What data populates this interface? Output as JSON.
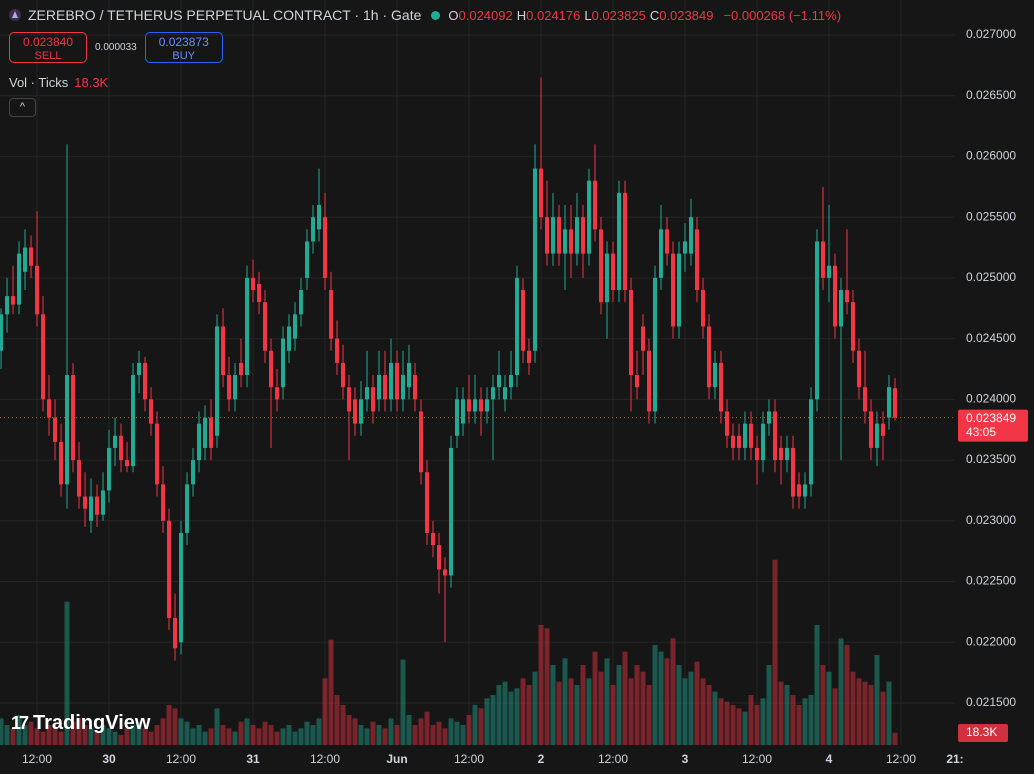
{
  "header": {
    "title": "ZEREBRO / TETHERUS PERPETUAL CONTRACT · 1h · Gate",
    "ohlc_legend": [
      {
        "key": "O",
        "value": "0.024092"
      },
      {
        "key": "H",
        "value": "0.024176"
      },
      {
        "key": "L",
        "value": "0.023825"
      },
      {
        "key": "C",
        "value": "0.023849"
      }
    ],
    "change": "−0.000268 (−1.11%)"
  },
  "trade": {
    "sell_price": "0.023840",
    "sell_label": "SELL",
    "spread": "0.000033",
    "buy_price": "0.023873",
    "buy_label": "BUY"
  },
  "volume_legend": {
    "label": "Vol · Ticks"
  },
  "logo": "TradingView",
  "chart_data": {
    "type": "candlestick",
    "up_color": "#22ab94",
    "down_color": "#f23645",
    "ohlc": [
      [
        0.0244,
        0.02475,
        0.02425,
        0.0247
      ],
      [
        0.0247,
        0.025,
        0.02455,
        0.02485
      ],
      [
        0.02485,
        0.0251,
        0.0247,
        0.02478
      ],
      [
        0.02478,
        0.0253,
        0.0247,
        0.0252
      ],
      [
        0.02505,
        0.0254,
        0.0249,
        0.02525
      ],
      [
        0.02525,
        0.02535,
        0.025,
        0.0251
      ],
      [
        0.0251,
        0.02555,
        0.0246,
        0.0247
      ],
      [
        0.0247,
        0.02485,
        0.0239,
        0.024
      ],
      [
        0.024,
        0.0242,
        0.0237,
        0.02385
      ],
      [
        0.02385,
        0.024,
        0.0235,
        0.02365
      ],
      [
        0.02365,
        0.0238,
        0.0232,
        0.0233
      ],
      [
        0.0233,
        0.0261,
        0.0231,
        0.0242
      ],
      [
        0.0242,
        0.0243,
        0.0234,
        0.0235
      ],
      [
        0.0235,
        0.02365,
        0.0231,
        0.0232
      ],
      [
        0.0232,
        0.0234,
        0.02295,
        0.0231
      ],
      [
        0.023,
        0.02335,
        0.0229,
        0.0232
      ],
      [
        0.0232,
        0.0233,
        0.02295,
        0.02305
      ],
      [
        0.02305,
        0.0234,
        0.023,
        0.02325
      ],
      [
        0.02325,
        0.02375,
        0.02315,
        0.0236
      ],
      [
        0.0236,
        0.02385,
        0.02345,
        0.0237
      ],
      [
        0.0237,
        0.0238,
        0.0234,
        0.0235
      ],
      [
        0.0235,
        0.02365,
        0.0234,
        0.02345
      ],
      [
        0.02345,
        0.0243,
        0.0234,
        0.0242
      ],
      [
        0.0242,
        0.0244,
        0.02405,
        0.0243
      ],
      [
        0.0243,
        0.02435,
        0.0239,
        0.024
      ],
      [
        0.024,
        0.0241,
        0.0237,
        0.0238
      ],
      [
        0.0238,
        0.0239,
        0.0232,
        0.0233
      ],
      [
        0.0233,
        0.02345,
        0.0229,
        0.023
      ],
      [
        0.023,
        0.0231,
        0.0221,
        0.0222
      ],
      [
        0.0222,
        0.0224,
        0.02185,
        0.02195
      ],
      [
        0.022,
        0.023,
        0.0219,
        0.0229
      ],
      [
        0.0229,
        0.0234,
        0.0228,
        0.0233
      ],
      [
        0.0233,
        0.0236,
        0.0232,
        0.0235
      ],
      [
        0.0235,
        0.0239,
        0.0234,
        0.0238
      ],
      [
        0.0236,
        0.02395,
        0.0235,
        0.02385
      ],
      [
        0.02385,
        0.024,
        0.0235,
        0.0236
      ],
      [
        0.0237,
        0.0247,
        0.0236,
        0.0246
      ],
      [
        0.0246,
        0.02475,
        0.0241,
        0.0242
      ],
      [
        0.0242,
        0.02435,
        0.0239,
        0.024
      ],
      [
        0.024,
        0.0243,
        0.0239,
        0.0242
      ],
      [
        0.0243,
        0.0245,
        0.0241,
        0.0242
      ],
      [
        0.0242,
        0.0251,
        0.0241,
        0.025
      ],
      [
        0.025,
        0.02515,
        0.0248,
        0.0249
      ],
      [
        0.02495,
        0.02505,
        0.0247,
        0.0248
      ],
      [
        0.0248,
        0.0249,
        0.0243,
        0.0244
      ],
      [
        0.0244,
        0.0245,
        0.0236,
        0.0241
      ],
      [
        0.0241,
        0.02425,
        0.0239,
        0.024
      ],
      [
        0.0241,
        0.0246,
        0.024,
        0.0245
      ],
      [
        0.0244,
        0.0247,
        0.0243,
        0.0246
      ],
      [
        0.0245,
        0.0248,
        0.0244,
        0.0247
      ],
      [
        0.0247,
        0.025,
        0.0246,
        0.0249
      ],
      [
        0.025,
        0.0254,
        0.0249,
        0.0253
      ],
      [
        0.0253,
        0.0256,
        0.0252,
        0.0255
      ],
      [
        0.0254,
        0.0259,
        0.0253,
        0.0256
      ],
      [
        0.0255,
        0.0257,
        0.0249,
        0.025
      ],
      [
        0.0249,
        0.02505,
        0.0244,
        0.0245
      ],
      [
        0.0245,
        0.02465,
        0.0242,
        0.0243
      ],
      [
        0.0243,
        0.02445,
        0.024,
        0.0241
      ],
      [
        0.0241,
        0.0242,
        0.0235,
        0.0239
      ],
      [
        0.024,
        0.0241,
        0.0237,
        0.0238
      ],
      [
        0.0238,
        0.02415,
        0.0237,
        0.024
      ],
      [
        0.024,
        0.0244,
        0.0239,
        0.0241
      ],
      [
        0.0241,
        0.0242,
        0.0238,
        0.0239
      ],
      [
        0.024,
        0.0244,
        0.0239,
        0.0242
      ],
      [
        0.0242,
        0.0244,
        0.0239,
        0.024
      ],
      [
        0.024,
        0.0245,
        0.0239,
        0.0243
      ],
      [
        0.0243,
        0.0244,
        0.0239,
        0.024
      ],
      [
        0.024,
        0.0244,
        0.0239,
        0.0242
      ],
      [
        0.0241,
        0.02445,
        0.024,
        0.0243
      ],
      [
        0.0242,
        0.0243,
        0.0239,
        0.024
      ],
      [
        0.0239,
        0.024,
        0.0233,
        0.0234
      ],
      [
        0.0234,
        0.0235,
        0.0228,
        0.0229
      ],
      [
        0.0229,
        0.023,
        0.0227,
        0.0228
      ],
      [
        0.0228,
        0.0229,
        0.0224,
        0.0226
      ],
      [
        0.0226,
        0.0227,
        0.022,
        0.02255
      ],
      [
        0.02255,
        0.0237,
        0.02245,
        0.0236
      ],
      [
        0.0237,
        0.0241,
        0.0236,
        0.024
      ],
      [
        0.0238,
        0.0241,
        0.0237,
        0.024
      ],
      [
        0.024,
        0.0242,
        0.0238,
        0.0239
      ],
      [
        0.0239,
        0.0242,
        0.0238,
        0.024
      ],
      [
        0.024,
        0.0241,
        0.0237,
        0.0239
      ],
      [
        0.0239,
        0.0241,
        0.0238,
        0.024
      ],
      [
        0.024,
        0.0242,
        0.0235,
        0.0241
      ],
      [
        0.0241,
        0.0244,
        0.024,
        0.0242
      ],
      [
        0.024,
        0.0242,
        0.0239,
        0.0241
      ],
      [
        0.0241,
        0.0244,
        0.024,
        0.0242
      ],
      [
        0.0242,
        0.0251,
        0.0241,
        0.025
      ],
      [
        0.0249,
        0.025,
        0.0243,
        0.0244
      ],
      [
        0.0244,
        0.0245,
        0.0242,
        0.0243
      ],
      [
        0.0244,
        0.0261,
        0.0243,
        0.0259
      ],
      [
        0.0259,
        0.02665,
        0.0254,
        0.0255
      ],
      [
        0.0255,
        0.0258,
        0.0251,
        0.0252
      ],
      [
        0.0252,
        0.0257,
        0.0251,
        0.0255
      ],
      [
        0.0255,
        0.0256,
        0.0251,
        0.0252
      ],
      [
        0.0252,
        0.0256,
        0.0249,
        0.0254
      ],
      [
        0.0254,
        0.0256,
        0.025,
        0.0252
      ],
      [
        0.0252,
        0.0257,
        0.0251,
        0.0255
      ],
      [
        0.0255,
        0.0256,
        0.025,
        0.0252
      ],
      [
        0.0252,
        0.0259,
        0.0251,
        0.0258
      ],
      [
        0.0258,
        0.0261,
        0.0253,
        0.0254
      ],
      [
        0.0254,
        0.0255,
        0.0247,
        0.0248
      ],
      [
        0.0248,
        0.0253,
        0.0245,
        0.0252
      ],
      [
        0.0252,
        0.0253,
        0.0248,
        0.0249
      ],
      [
        0.0249,
        0.0258,
        0.0248,
        0.0257
      ],
      [
        0.0257,
        0.0258,
        0.0248,
        0.0249
      ],
      [
        0.0249,
        0.025,
        0.0239,
        0.0242
      ],
      [
        0.0242,
        0.0244,
        0.024,
        0.0241
      ],
      [
        0.0246,
        0.0247,
        0.0242,
        0.0244
      ],
      [
        0.0244,
        0.0245,
        0.0238,
        0.0239
      ],
      [
        0.0239,
        0.0251,
        0.0238,
        0.025
      ],
      [
        0.025,
        0.0256,
        0.0249,
        0.0254
      ],
      [
        0.0254,
        0.0255,
        0.0251,
        0.0252
      ],
      [
        0.0252,
        0.0253,
        0.0245,
        0.0246
      ],
      [
        0.0246,
        0.0253,
        0.0245,
        0.0252
      ],
      [
        0.0252,
        0.02545,
        0.02505,
        0.0253
      ],
      [
        0.0252,
        0.02565,
        0.0251,
        0.0255
      ],
      [
        0.0254,
        0.0255,
        0.0248,
        0.0249
      ],
      [
        0.0249,
        0.025,
        0.0245,
        0.0246
      ],
      [
        0.0246,
        0.0247,
        0.024,
        0.0241
      ],
      [
        0.0241,
        0.0244,
        0.024,
        0.0243
      ],
      [
        0.0243,
        0.0244,
        0.0238,
        0.0239
      ],
      [
        0.0239,
        0.024,
        0.0236,
        0.0237
      ],
      [
        0.0237,
        0.0238,
        0.0235,
        0.0236
      ],
      [
        0.0237,
        0.0238,
        0.0235,
        0.0236
      ],
      [
        0.0236,
        0.0239,
        0.0235,
        0.0238
      ],
      [
        0.0238,
        0.0239,
        0.0235,
        0.0236
      ],
      [
        0.0236,
        0.0237,
        0.0233,
        0.0235
      ],
      [
        0.0235,
        0.0239,
        0.0234,
        0.0238
      ],
      [
        0.0238,
        0.024,
        0.0237,
        0.0239
      ],
      [
        0.0239,
        0.024,
        0.0234,
        0.0235
      ],
      [
        0.0236,
        0.0237,
        0.0233,
        0.0235
      ],
      [
        0.0235,
        0.0237,
        0.0234,
        0.0236
      ],
      [
        0.0236,
        0.0237,
        0.0231,
        0.0232
      ],
      [
        0.0233,
        0.0234,
        0.0231,
        0.0232
      ],
      [
        0.0232,
        0.0234,
        0.0231,
        0.0233
      ],
      [
        0.0233,
        0.0241,
        0.0232,
        0.024
      ],
      [
        0.024,
        0.0254,
        0.0239,
        0.0253
      ],
      [
        0.0253,
        0.02575,
        0.0249,
        0.025
      ],
      [
        0.025,
        0.0256,
        0.0248,
        0.0251
      ],
      [
        0.0251,
        0.0252,
        0.0245,
        0.0246
      ],
      [
        0.0246,
        0.025,
        0.0235,
        0.0249
      ],
      [
        0.0249,
        0.0254,
        0.0247,
        0.0248
      ],
      [
        0.0248,
        0.0249,
        0.0243,
        0.0244
      ],
      [
        0.0244,
        0.0245,
        0.024,
        0.0241
      ],
      [
        0.0241,
        0.0244,
        0.0238,
        0.0239
      ],
      [
        0.0239,
        0.024,
        0.0235,
        0.0236
      ],
      [
        0.0236,
        0.0239,
        0.02345,
        0.0238
      ],
      [
        0.0238,
        0.0239,
        0.0235,
        0.0237
      ],
      [
        0.02385,
        0.0242,
        0.02375,
        0.0241
      ],
      [
        0.024092,
        0.024176,
        0.023825,
        0.023849
      ]
    ],
    "volume": [
      40000,
      30000,
      25000,
      45000,
      30000,
      35000,
      25000,
      20000,
      30000,
      25000,
      20000,
      215000,
      35000,
      40000,
      30000,
      25000,
      20000,
      30000,
      25000,
      20000,
      15000,
      25000,
      30000,
      35000,
      25000,
      20000,
      30000,
      40000,
      60000,
      55000,
      40000,
      35000,
      25000,
      30000,
      20000,
      25000,
      55000,
      30000,
      25000,
      20000,
      35000,
      40000,
      30000,
      25000,
      35000,
      30000,
      20000,
      25000,
      30000,
      20000,
      25000,
      35000,
      30000,
      40000,
      100000,
      158000,
      75000,
      60000,
      45000,
      40000,
      30000,
      25000,
      35000,
      30000,
      25000,
      40000,
      30000,
      128000,
      45000,
      30000,
      40000,
      50000,
      30000,
      35000,
      25000,
      40000,
      35000,
      30000,
      45000,
      60000,
      55000,
      70000,
      75000,
      90000,
      95000,
      80000,
      85000,
      100000,
      90000,
      110000,
      180000,
      175000,
      120000,
      95000,
      130000,
      100000,
      90000,
      120000,
      100000,
      140000,
      110000,
      130000,
      90000,
      120000,
      140000,
      100000,
      120000,
      110000,
      90000,
      150000,
      140000,
      130000,
      160000,
      120000,
      100000,
      110000,
      125000,
      100000,
      90000,
      80000,
      70000,
      65000,
      60000,
      55000,
      50000,
      75000,
      60000,
      70000,
      120000,
      278000,
      95000,
      90000,
      75000,
      60000,
      70000,
      75000,
      180000,
      120000,
      110000,
      85000,
      160000,
      150000,
      110000,
      100000,
      95000,
      90000,
      135000,
      80000,
      95000,
      18300
    ],
    "volume_tag": "18.3K",
    "countdown": "43:05",
    "xlim": [
      -0.17,
      159
    ],
    "xticks": [
      {
        "value": 6,
        "label": "12:00"
      },
      {
        "value": 18,
        "label": "30"
      },
      {
        "value": 30,
        "label": "12:00"
      },
      {
        "value": 42,
        "label": "31"
      },
      {
        "value": 54,
        "label": "12:00"
      },
      {
        "value": 66,
        "label": "Jun"
      },
      {
        "value": 78,
        "label": "12:00"
      },
      {
        "value": 90,
        "label": "2"
      },
      {
        "value": 102,
        "label": "12:00"
      },
      {
        "value": 114,
        "label": "3"
      },
      {
        "value": 126,
        "label": "12:00"
      },
      {
        "value": 138,
        "label": "4"
      },
      {
        "value": 150,
        "label": "12:00"
      },
      {
        "value": 159,
        "label": "21:"
      }
    ],
    "ylim": [
      0.021154,
      0.027288
    ],
    "yticks": [
      {
        "value": 0.0215,
        "label": "0.021500"
      },
      {
        "value": 0.022,
        "label": "0.022000"
      },
      {
        "value": 0.0225,
        "label": "0.022500"
      },
      {
        "value": 0.023,
        "label": "0.023000"
      },
      {
        "value": 0.0235,
        "label": "0.023500"
      },
      {
        "value": 0.024,
        "label": "0.024000"
      },
      {
        "value": 0.0245,
        "label": "0.024500"
      },
      {
        "value": 0.025,
        "label": "0.025000"
      },
      {
        "value": 0.0255,
        "label": "0.025500"
      },
      {
        "value": 0.026,
        "label": "0.026000"
      },
      {
        "value": 0.0265,
        "label": "0.026500"
      },
      {
        "value": 0.027,
        "label": "0.027000"
      }
    ],
    "grid": true
  }
}
